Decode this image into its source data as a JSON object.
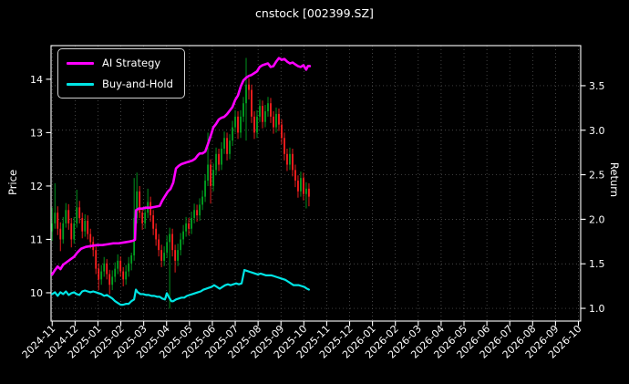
{
  "chart_data": {
    "type": "candlestick+line",
    "title": "cnstock [002399.SZ]",
    "ylabel_left": "Price",
    "ylabel_right": "Return",
    "legend_position": "upper-left",
    "grid": true,
    "x_tick_labels": [
      "2024-11",
      "2024-12",
      "2025-01",
      "2025-02",
      "2025-03",
      "2025-04",
      "2025-05",
      "2025-06",
      "2025-07",
      "2025-08",
      "2025-09",
      "2025-10",
      "2025-11",
      "2025-12",
      "2026-01",
      "2026-02",
      "2026-03",
      "2026-04",
      "2026-05",
      "2026-06",
      "2026-07",
      "2026-08",
      "2026-09",
      "2026-10"
    ],
    "xlim_months": [
      -0.05,
      23.1
    ],
    "price_ylim": [
      9.47,
      14.63
    ],
    "price_ticks": [
      10,
      11,
      12,
      13,
      14
    ],
    "price_tick_labels": [
      "10",
      "11",
      "12",
      "13",
      "14"
    ],
    "return_ylim": [
      0.857,
      3.95
    ],
    "return_ticks": [
      1.0,
      1.5,
      2.0,
      2.5,
      3.0,
      3.5
    ],
    "return_tick_labels": [
      "1.0",
      "1.5",
      "2.0",
      "2.5",
      "3.0",
      "3.5"
    ],
    "colors": {
      "background": "#000000",
      "foreground": "#ffffff",
      "grid": "#b0b0b0",
      "candle_up": "#00a321",
      "candle_down": "#ff1f1f",
      "ai_strategy": "#ff00ff",
      "buy_and_hold": "#00e5e5"
    },
    "candles": {
      "axis": "price",
      "start_m": 0,
      "step_m": 0.1194,
      "ohlc": [
        [
          11.15,
          11.6,
          10.97,
          11.3
        ],
        [
          11.3,
          12.05,
          11.2,
          11.5
        ],
        [
          11.5,
          11.62,
          11.08,
          11.2
        ],
        [
          11.2,
          11.32,
          10.78,
          11.0
        ],
        [
          11.0,
          11.42,
          10.92,
          11.3
        ],
        [
          11.3,
          11.68,
          11.22,
          11.55
        ],
        [
          11.55,
          11.66,
          11.18,
          11.3
        ],
        [
          11.3,
          11.4,
          10.85,
          11.0
        ],
        [
          11.0,
          11.42,
          10.92,
          11.3
        ],
        [
          11.3,
          11.93,
          11.22,
          11.6
        ],
        [
          11.6,
          11.72,
          11.3,
          11.4
        ],
        [
          11.4,
          11.5,
          11.02,
          11.15
        ],
        [
          11.15,
          11.47,
          11.05,
          11.35
        ],
        [
          11.35,
          11.45,
          11.0,
          11.1
        ],
        [
          11.1,
          11.2,
          10.83,
          10.95
        ],
        [
          10.95,
          11.05,
          10.68,
          10.8
        ],
        [
          10.8,
          10.88,
          10.35,
          10.45
        ],
        [
          10.45,
          10.55,
          10.05,
          10.25
        ],
        [
          10.25,
          10.52,
          10.15,
          10.4
        ],
        [
          10.4,
          10.67,
          10.3,
          10.55
        ],
        [
          10.55,
          10.63,
          10.25,
          10.35
        ],
        [
          10.35,
          10.43,
          9.97,
          10.15
        ],
        [
          10.15,
          10.42,
          10.05,
          10.3
        ],
        [
          10.3,
          10.57,
          10.2,
          10.45
        ],
        [
          10.45,
          10.72,
          10.35,
          10.6
        ],
        [
          10.6,
          10.68,
          10.3,
          10.4
        ],
        [
          10.4,
          10.48,
          10.12,
          10.25
        ],
        [
          10.25,
          10.52,
          10.15,
          10.4
        ],
        [
          10.4,
          10.67,
          10.3,
          10.55
        ],
        [
          10.55,
          10.75,
          10.42,
          10.7
        ],
        [
          10.7,
          12.15,
          10.6,
          11.4
        ],
        [
          11.4,
          12.25,
          11.3,
          11.9
        ],
        [
          11.9,
          12.0,
          11.4,
          11.5
        ],
        [
          11.5,
          11.6,
          11.18,
          11.3
        ],
        [
          11.3,
          11.62,
          11.2,
          11.5
        ],
        [
          11.5,
          11.95,
          11.4,
          11.7
        ],
        [
          11.7,
          11.8,
          11.33,
          11.45
        ],
        [
          11.45,
          11.55,
          11.08,
          11.2
        ],
        [
          11.2,
          11.3,
          10.88,
          11.0
        ],
        [
          11.0,
          11.1,
          10.68,
          10.8
        ],
        [
          10.8,
          10.9,
          10.48,
          10.6
        ],
        [
          10.6,
          10.87,
          10.5,
          10.75
        ],
        [
          10.75,
          11.07,
          10.65,
          10.95
        ],
        [
          10.95,
          11.22,
          9.7,
          11.1
        ],
        [
          11.1,
          11.2,
          10.68,
          10.8
        ],
        [
          10.8,
          10.9,
          10.38,
          10.6
        ],
        [
          10.6,
          10.92,
          10.5,
          10.8
        ],
        [
          10.8,
          11.12,
          10.7,
          11.0
        ],
        [
          11.0,
          11.27,
          10.9,
          11.15
        ],
        [
          11.15,
          11.42,
          11.05,
          11.3
        ],
        [
          11.3,
          11.4,
          11.08,
          11.2
        ],
        [
          11.2,
          11.52,
          11.1,
          11.4
        ],
        [
          11.4,
          11.67,
          11.3,
          11.55
        ],
        [
          11.55,
          11.65,
          11.33,
          11.45
        ],
        [
          11.45,
          11.77,
          11.35,
          11.65
        ],
        [
          11.65,
          11.92,
          11.55,
          11.8
        ],
        [
          11.8,
          12.22,
          11.7,
          12.1
        ],
        [
          12.1,
          13.0,
          12.0,
          12.4
        ],
        [
          12.4,
          12.5,
          11.67,
          12.0
        ],
        [
          12.0,
          12.42,
          11.9,
          12.3
        ],
        [
          12.3,
          12.72,
          12.2,
          12.6
        ],
        [
          12.6,
          12.7,
          12.28,
          12.4
        ],
        [
          12.4,
          12.82,
          12.3,
          12.7
        ],
        [
          12.7,
          13.02,
          12.6,
          12.9
        ],
        [
          12.9,
          13.0,
          12.48,
          12.6
        ],
        [
          12.6,
          12.97,
          12.5,
          12.85
        ],
        [
          12.85,
          13.22,
          12.75,
          13.1
        ],
        [
          13.1,
          13.42,
          13.0,
          13.3
        ],
        [
          13.3,
          13.4,
          12.88,
          13.0
        ],
        [
          13.0,
          13.42,
          12.9,
          13.3
        ],
        [
          13.3,
          13.67,
          13.2,
          13.55
        ],
        [
          13.55,
          14.4,
          12.85,
          13.9
        ],
        [
          13.9,
          14.02,
          13.62,
          13.8
        ],
        [
          13.8,
          13.9,
          13.18,
          13.3
        ],
        [
          13.3,
          13.4,
          12.88,
          13.0
        ],
        [
          13.0,
          13.42,
          12.9,
          13.3
        ],
        [
          13.3,
          13.62,
          13.2,
          13.5
        ],
        [
          13.5,
          13.6,
          13.08,
          13.2
        ],
        [
          13.2,
          13.52,
          13.1,
          13.4
        ],
        [
          13.4,
          13.67,
          13.3,
          13.55
        ],
        [
          13.55,
          13.65,
          13.18,
          13.3
        ],
        [
          13.3,
          13.4,
          12.98,
          13.1
        ],
        [
          13.1,
          13.47,
          13.0,
          13.35
        ],
        [
          13.35,
          13.45,
          13.03,
          13.15
        ],
        [
          13.15,
          13.25,
          12.78,
          12.9
        ],
        [
          12.9,
          13.0,
          12.48,
          12.6
        ],
        [
          12.6,
          12.7,
          12.28,
          12.4
        ],
        [
          12.4,
          12.72,
          12.3,
          12.6
        ],
        [
          12.6,
          12.7,
          12.18,
          12.3
        ],
        [
          12.3,
          12.4,
          11.98,
          12.1
        ],
        [
          12.1,
          12.2,
          11.78,
          11.9
        ],
        [
          11.9,
          12.27,
          11.8,
          12.15
        ],
        [
          12.15,
          12.25,
          11.73,
          11.85
        ],
        [
          11.85,
          12.07,
          11.58,
          11.95
        ],
        [
          11.95,
          12.05,
          11.62,
          11.8
        ]
      ]
    },
    "series": [
      {
        "name": "AI Strategy",
        "axis": "return",
        "color_key": "ai_strategy",
        "x": [
          0,
          0.12,
          0.24,
          0.36,
          0.48,
          0.64,
          0.8,
          0.96,
          1.11,
          1.27,
          1.47,
          1.71,
          1.95,
          2.19,
          2.43,
          2.67,
          2.9,
          3.14,
          3.38,
          3.54,
          3.62,
          3.66,
          3.78,
          3.94,
          4.1,
          4.3,
          4.5,
          4.7,
          4.81,
          4.93,
          5.05,
          5.17,
          5.29,
          5.41,
          5.53,
          5.65,
          5.77,
          5.89,
          6.01,
          6.13,
          6.25,
          6.37,
          6.45,
          6.57,
          6.69,
          6.8,
          6.92,
          7.04,
          7.16,
          7.28,
          7.4,
          7.52,
          7.64,
          7.76,
          7.88,
          8,
          8.12,
          8.24,
          8.36,
          8.48,
          8.6,
          8.71,
          8.83,
          8.95,
          9.07,
          9.19,
          9.31,
          9.43,
          9.55,
          9.67,
          9.79,
          9.91,
          10.03,
          10.15,
          10.27,
          10.39,
          10.51,
          10.62,
          10.74,
          10.86,
          10.98,
          11.1,
          11.18,
          11.26
        ],
        "y": [
          1.38,
          1.43,
          1.47,
          1.44,
          1.49,
          1.52,
          1.55,
          1.58,
          1.63,
          1.67,
          1.69,
          1.7,
          1.71,
          1.71,
          1.72,
          1.73,
          1.73,
          1.74,
          1.75,
          1.76,
          1.77,
          2.1,
          2.12,
          2.12,
          2.13,
          2.13,
          2.14,
          2.15,
          2.21,
          2.26,
          2.31,
          2.34,
          2.41,
          2.57,
          2.6,
          2.62,
          2.63,
          2.64,
          2.65,
          2.66,
          2.68,
          2.72,
          2.74,
          2.74,
          2.76,
          2.84,
          2.93,
          3.03,
          3.07,
          3.12,
          3.14,
          3.15,
          3.18,
          3.22,
          3.26,
          3.34,
          3.39,
          3.49,
          3.56,
          3.59,
          3.61,
          3.62,
          3.64,
          3.66,
          3.71,
          3.73,
          3.74,
          3.75,
          3.71,
          3.72,
          3.77,
          3.81,
          3.79,
          3.8,
          3.77,
          3.75,
          3.76,
          3.74,
          3.72,
          3.71,
          3.73,
          3.68,
          3.72,
          3.72
        ]
      },
      {
        "name": "Buy-and-Hold",
        "axis": "return",
        "color_key": "buy_and_hold",
        "x": [
          0,
          0.12,
          0.24,
          0.36,
          0.48,
          0.6,
          0.72,
          0.84,
          0.96,
          1.07,
          1.19,
          1.31,
          1.43,
          1.55,
          1.67,
          1.79,
          1.91,
          2.03,
          2.15,
          2.27,
          2.39,
          2.51,
          2.63,
          2.75,
          2.87,
          2.99,
          3.1,
          3.22,
          3.34,
          3.46,
          3.58,
          3.66,
          3.74,
          3.86,
          3.98,
          4.1,
          4.22,
          4.34,
          4.46,
          4.58,
          4.7,
          4.81,
          4.93,
          5.01,
          5.09,
          5.21,
          5.29,
          5.41,
          5.53,
          5.65,
          5.77,
          5.89,
          6.01,
          6.13,
          6.25,
          6.37,
          6.49,
          6.61,
          6.73,
          6.84,
          6.96,
          7.08,
          7.2,
          7.32,
          7.44,
          7.56,
          7.68,
          7.8,
          7.92,
          8.04,
          8.16,
          8.28,
          8.4,
          8.52,
          8.63,
          8.75,
          8.87,
          8.99,
          9.11,
          9.23,
          9.35,
          9.47,
          9.59,
          9.71,
          9.83,
          9.95,
          10.07,
          10.19,
          10.31,
          10.43,
          10.55,
          10.66,
          10.78,
          10.9,
          11.02,
          11.14,
          11.22
        ],
        "y": [
          1.16,
          1.18,
          1.14,
          1.18,
          1.16,
          1.19,
          1.15,
          1.17,
          1.18,
          1.16,
          1.15,
          1.19,
          1.2,
          1.19,
          1.18,
          1.19,
          1.18,
          1.17,
          1.16,
          1.14,
          1.15,
          1.13,
          1.11,
          1.08,
          1.06,
          1.04,
          1.04,
          1.05,
          1.05,
          1.08,
          1.1,
          1.21,
          1.18,
          1.16,
          1.16,
          1.15,
          1.15,
          1.14,
          1.14,
          1.13,
          1.13,
          1.11,
          1.1,
          1.17,
          1.13,
          1.08,
          1.08,
          1.1,
          1.11,
          1.12,
          1.12,
          1.14,
          1.15,
          1.16,
          1.17,
          1.18,
          1.19,
          1.21,
          1.22,
          1.23,
          1.24,
          1.26,
          1.24,
          1.22,
          1.24,
          1.26,
          1.27,
          1.26,
          1.27,
          1.28,
          1.27,
          1.28,
          1.43,
          1.42,
          1.41,
          1.4,
          1.39,
          1.38,
          1.39,
          1.38,
          1.37,
          1.37,
          1.37,
          1.36,
          1.35,
          1.34,
          1.33,
          1.32,
          1.3,
          1.28,
          1.26,
          1.26,
          1.26,
          1.25,
          1.24,
          1.22,
          1.21
        ]
      }
    ]
  }
}
